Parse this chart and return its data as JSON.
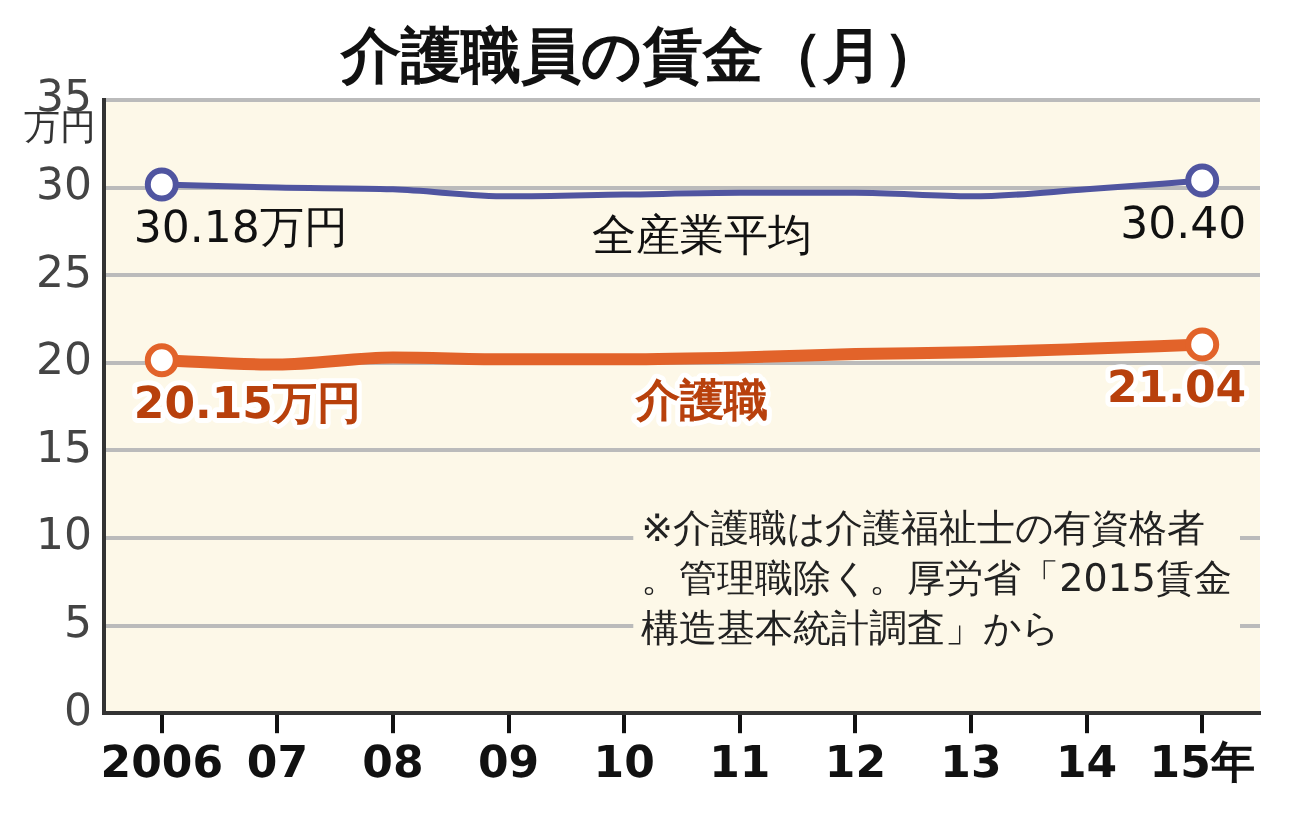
{
  "chart_data": {
    "type": "line",
    "title": "介護職員の賃金（月）",
    "ylabel": "万円",
    "categories": [
      "2006",
      "07",
      "08",
      "09",
      "10",
      "11",
      "12",
      "13",
      "14",
      "15年"
    ],
    "series": [
      {
        "name": "全産業平均",
        "color": "#5055a0",
        "values": [
          30.18,
          30.0,
          29.9,
          29.5,
          29.6,
          29.7,
          29.7,
          29.5,
          29.9,
          30.4
        ],
        "value_labels": [
          "30.18万円",
          null,
          null,
          null,
          null,
          null,
          null,
          null,
          null,
          "30.40"
        ]
      },
      {
        "name": "介護職",
        "color": "#e2632a",
        "values": [
          20.15,
          19.9,
          20.3,
          20.2,
          20.2,
          20.3,
          20.5,
          20.6,
          20.8,
          21.04
        ],
        "value_labels": [
          "20.15万円",
          null,
          null,
          null,
          null,
          null,
          null,
          null,
          null,
          "21.04"
        ]
      }
    ],
    "ylim": [
      0,
      35
    ],
    "yticks": [
      0,
      5,
      10,
      15,
      20,
      25,
      30,
      35
    ],
    "grid": "y",
    "legend": false,
    "line_style": "solid",
    "annotations": [
      "※介護職は介護福祉士の有資格者。管理職除く。厚労省「2015賃金構造基本統計調査」から"
    ]
  }
}
